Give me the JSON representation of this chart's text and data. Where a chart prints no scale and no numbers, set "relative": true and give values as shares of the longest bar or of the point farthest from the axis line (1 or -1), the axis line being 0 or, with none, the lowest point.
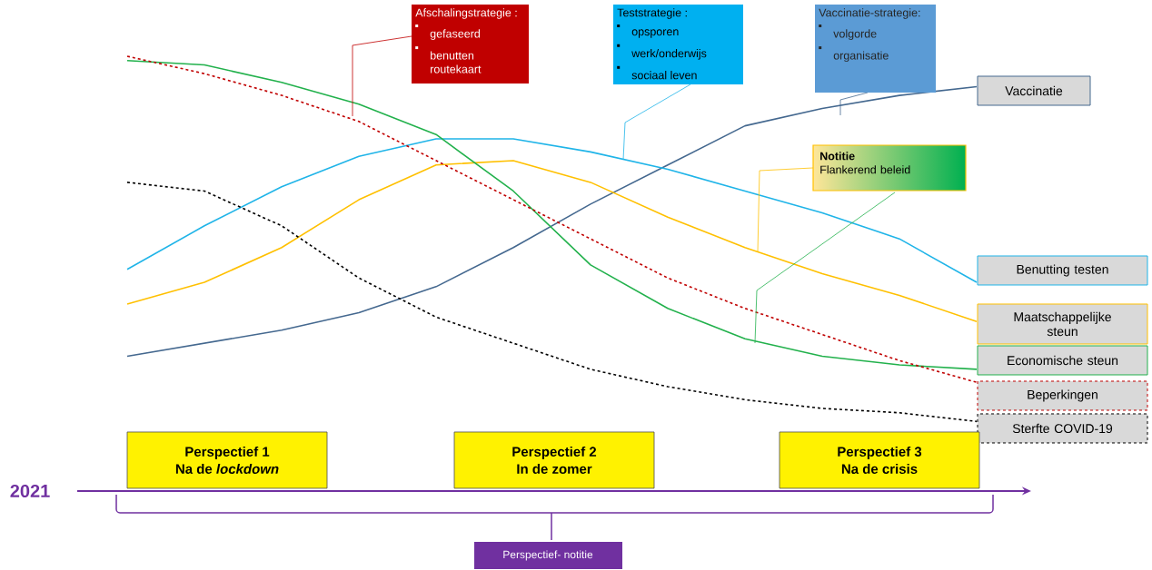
{
  "chart_data": {
    "type": "line",
    "relative": true,
    "categories": [
      null,
      null,
      null,
      null,
      null,
      null,
      null,
      null,
      null,
      null,
      null,
      null
    ],
    "series": [
      {
        "name": "Vaccinatie",
        "color": "#44688f",
        "values": [
          0.31,
          0.34,
          0.37,
          0.41,
          0.47,
          0.56,
          0.66,
          0.75,
          0.84,
          0.88,
          0.91,
          0.93
        ]
      },
      {
        "name": "Benutting testen",
        "color": "#1fb4e8",
        "values": [
          0.51,
          0.61,
          0.7,
          0.77,
          0.81,
          0.81,
          0.78,
          0.74,
          0.69,
          0.64,
          0.58,
          0.48
        ]
      },
      {
        "name": "Maatschappelijke steun",
        "color": "#ffc000",
        "values": [
          0.43,
          0.48,
          0.56,
          0.67,
          0.75,
          0.76,
          0.71,
          0.63,
          0.56,
          0.5,
          0.45,
          0.39
        ]
      },
      {
        "name": "Economische steun",
        "color": "#22b14c",
        "values": [
          0.99,
          0.98,
          0.94,
          0.89,
          0.82,
          0.69,
          0.52,
          0.42,
          0.35,
          0.31,
          0.29,
          0.28
        ]
      },
      {
        "name": "Beperkingen",
        "color": "#c00000",
        "line_style": "dashed",
        "values": [
          1.0,
          0.96,
          0.91,
          0.85,
          0.76,
          0.67,
          0.58,
          0.49,
          0.42,
          0.36,
          0.3,
          0.25
        ]
      },
      {
        "name": "Sterfte COVID-19",
        "color": "#000000",
        "line_style": "dashed",
        "values": [
          0.71,
          0.69,
          0.61,
          0.49,
          0.4,
          0.34,
          0.28,
          0.24,
          0.21,
          0.19,
          0.18,
          0.16
        ]
      }
    ],
    "annotations": [
      "Afschalingstrategie :",
      "gefaseerd",
      "benutten routekaart",
      "Teststrategie :",
      "opsporen",
      "werk/onderwijs",
      "sociaal leven",
      "Vaccinatie-strategie:",
      "volgorde",
      "organisatie",
      "Notitie",
      "Flankerend beleid",
      "Perspectief 1",
      "Na de *lockdown*",
      "Perspectief 2",
      "In de zomer",
      "Perspectief 3",
      "Na de crisis",
      "2021",
      "Perspectief- notitie"
    ]
  }
}
